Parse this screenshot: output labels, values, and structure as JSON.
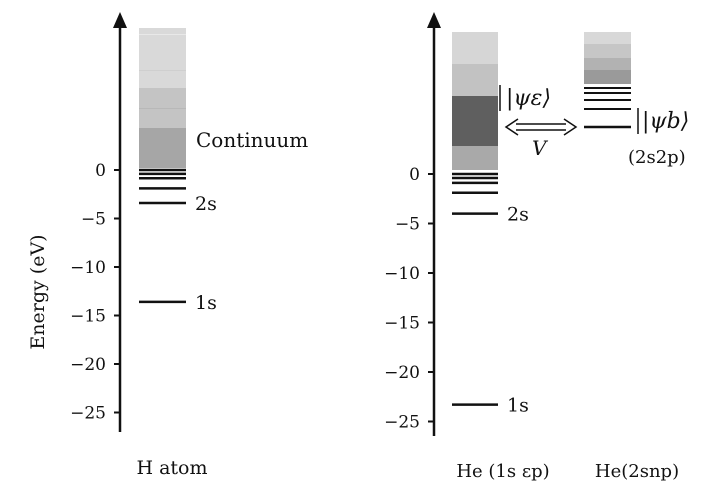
{
  "y_axis_label": "Energy (eV)",
  "ticks_left": [
    0,
    -5,
    -10,
    -15,
    -20,
    -25
  ],
  "ticks_right": [
    0,
    -5,
    -10,
    -15,
    -20,
    -25
  ],
  "left_panel": {
    "caption": "H atom",
    "continuum_label": "Continuum",
    "levels": [
      {
        "label": "1s",
        "energy": -13.6
      },
      {
        "label": "2s",
        "energy": -3.4
      },
      {
        "label": "",
        "energy": -1.9
      },
      {
        "label": "",
        "energy": -0.85
      },
      {
        "label": "",
        "energy": -0.4
      },
      {
        "label": "",
        "energy": 0.0
      }
    ]
  },
  "right_panel": {
    "caption_a": "He (1s εp)",
    "caption_b": "He(2snp)",
    "psi_e_label": "|ψε⟩",
    "psi_b_label": "|ψb⟩",
    "psi_b_config": "(2s2p)",
    "coupling_label": "V",
    "levels_a": [
      {
        "label": "1s",
        "energy": -23.3
      },
      {
        "label": "2s",
        "energy": -4.0
      },
      {
        "label": "",
        "energy": -1.9
      },
      {
        "label": "",
        "energy": -0.9
      },
      {
        "label": "",
        "energy": -0.4
      },
      {
        "label": "",
        "energy": 0.0
      }
    ]
  },
  "colors": {
    "ink": "#111111",
    "band_light": "#d6d6d6",
    "band_mid": "#a8a8a8",
    "band_dark": "#666666"
  }
}
